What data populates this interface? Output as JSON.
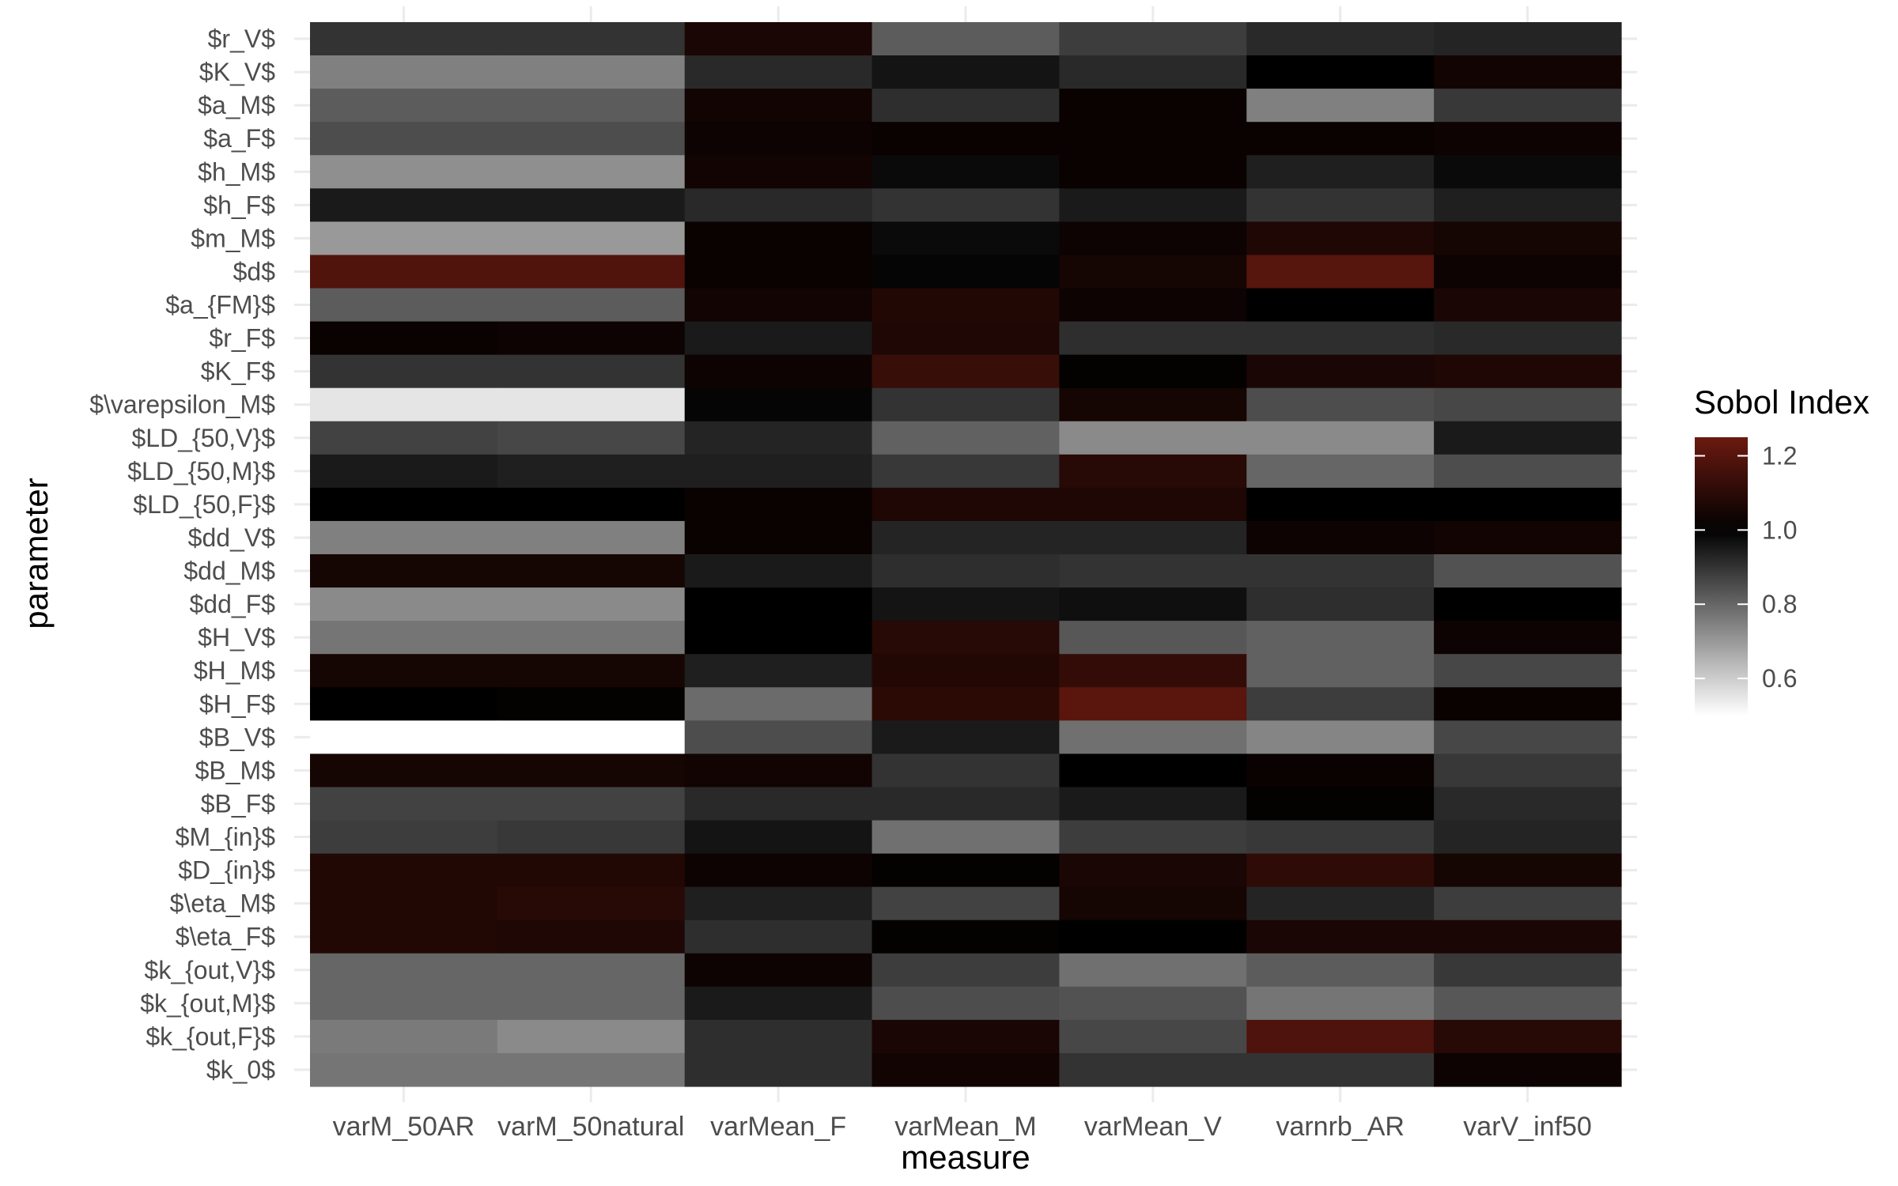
{
  "chart_data": {
    "type": "heatmap",
    "title": "",
    "xlabel": "measure",
    "ylabel": "parameter",
    "x": [
      "varM_50AR",
      "varM_50natural",
      "varMean_F",
      "varMean_M",
      "varMean_V",
      "varnrb_AR",
      "varV_inf50"
    ],
    "y": [
      "$r_V$",
      "$K_V$",
      "$a_M$",
      "$a_F$",
      "$h_M$",
      "$h_F$",
      "$m_M$",
      "$d$",
      "$a_{FM}$",
      "$r_F$",
      "$K_F$",
      "$\\varepsilon_M$",
      "$LD_{50,V}$",
      "$LD_{50,M}$",
      "$LD_{50,F}$",
      "$dd_V$",
      "$dd_M$",
      "$dd_F$",
      "$H_V$",
      "$H_M$",
      "$H_F$",
      "$B_V$",
      "$B_M$",
      "$B_F$",
      "$M_{in}$",
      "$D_{in}$",
      "$\\eta_M$",
      "$\\eta_F$",
      "$k_{out,V}$",
      "$k_{out,M}$",
      "$k_{out,F}$",
      "$k_0$"
    ],
    "z": [
      [
        0.9,
        0.9,
        1.06,
        0.82,
        0.88,
        0.92,
        0.93
      ],
      [
        0.75,
        0.75,
        0.92,
        0.96,
        0.92,
        1.0,
        1.04
      ],
      [
        0.82,
        0.82,
        1.04,
        0.91,
        1.02,
        0.75,
        0.89
      ],
      [
        0.85,
        0.85,
        1.03,
        1.02,
        1.02,
        1.02,
        1.03
      ],
      [
        0.72,
        0.72,
        1.04,
        0.98,
        1.02,
        0.94,
        0.98
      ],
      [
        0.95,
        0.95,
        0.92,
        0.9,
        0.95,
        0.9,
        0.94
      ],
      [
        0.7,
        0.7,
        1.02,
        0.98,
        1.03,
        1.07,
        1.05
      ],
      [
        1.19,
        1.19,
        1.02,
        0.99,
        1.05,
        1.2,
        1.03
      ],
      [
        0.82,
        0.82,
        1.04,
        1.08,
        1.03,
        1.0,
        1.06
      ],
      [
        1.02,
        1.03,
        0.95,
        1.07,
        0.91,
        0.91,
        0.92
      ],
      [
        0.9,
        0.9,
        1.03,
        1.13,
        1.01,
        1.06,
        1.07
      ],
      [
        0.55,
        0.55,
        0.99,
        0.9,
        1.05,
        0.85,
        0.86
      ],
      [
        0.87,
        0.86,
        0.93,
        0.81,
        0.73,
        0.73,
        0.95
      ],
      [
        0.95,
        0.94,
        0.94,
        0.89,
        1.09,
        0.8,
        0.85
      ],
      [
        1.0,
        1.0,
        1.02,
        1.07,
        1.07,
        1.0,
        1.0
      ],
      [
        0.75,
        0.75,
        1.02,
        0.93,
        0.93,
        1.03,
        1.04
      ],
      [
        1.05,
        1.05,
        0.95,
        0.91,
        0.9,
        0.9,
        0.84
      ],
      [
        0.73,
        0.73,
        1.0,
        0.96,
        0.97,
        0.91,
        1.0
      ],
      [
        0.77,
        0.77,
        1.0,
        1.09,
        0.83,
        0.81,
        1.03
      ],
      [
        1.05,
        1.05,
        0.94,
        1.08,
        1.12,
        0.81,
        0.86
      ],
      [
        1.0,
        1.01,
        0.79,
        1.1,
        1.21,
        0.88,
        1.02
      ],
      [
        0.5,
        0.5,
        0.85,
        0.95,
        0.78,
        0.74,
        0.86
      ],
      [
        1.05,
        1.05,
        1.04,
        0.9,
        1.0,
        1.02,
        0.89
      ],
      [
        0.87,
        0.87,
        0.92,
        0.92,
        0.95,
        1.01,
        0.92
      ],
      [
        0.88,
        0.89,
        0.96,
        0.78,
        0.88,
        0.89,
        0.93
      ],
      [
        1.08,
        1.08,
        1.03,
        1.01,
        1.06,
        1.11,
        1.05
      ],
      [
        1.08,
        1.09,
        0.94,
        0.87,
        1.05,
        0.93,
        0.88
      ],
      [
        1.08,
        1.07,
        0.91,
        1.01,
        1.0,
        1.06,
        1.06
      ],
      [
        0.8,
        0.8,
        1.03,
        0.88,
        0.78,
        0.82,
        0.89
      ],
      [
        0.8,
        0.8,
        0.95,
        0.85,
        0.84,
        0.77,
        0.83
      ],
      [
        0.76,
        0.73,
        0.91,
        1.06,
        0.86,
        1.18,
        1.09
      ],
      [
        0.77,
        0.77,
        0.91,
        1.04,
        0.9,
        0.9,
        1.03
      ]
    ],
    "zlim": [
      0.5,
      1.25
    ],
    "colorscale": {
      "low": "#ffffff",
      "mid": "#000000",
      "high": "#6b1a10",
      "midpoint": 1.0
    },
    "legend": {
      "title": "Sobol Index",
      "ticks": [
        0.6,
        0.8,
        1.0,
        1.2
      ],
      "tick_labels": [
        "0.6",
        "0.8",
        "1.0",
        "1.2"
      ],
      "placement": "right"
    },
    "grid": true
  }
}
